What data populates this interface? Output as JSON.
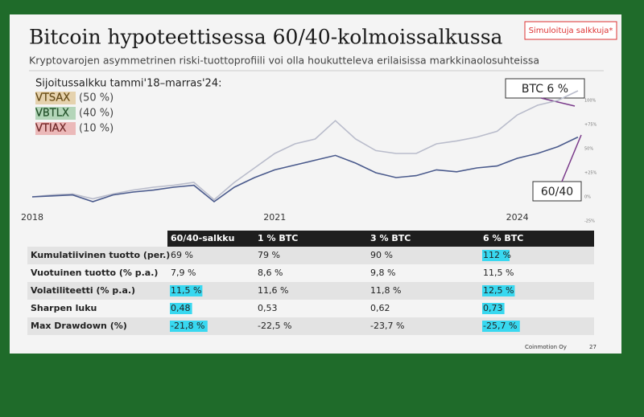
{
  "badge": "Simuloituja salkkuja*",
  "chart_data": {
    "type": "line",
    "title": "Bitcoin hypoteettisessa 60/40-kolmoissalkussa",
    "subtitle": "Kryptovarojen asymmetrinen riski-tuottoprofiili voi olla houkutteleva erilaisissa markkinaolosuhteissa",
    "legend_title": "Sijoitussalkku tammi'18–marras'24:",
    "legend_items": [
      {
        "label": "VTSAX",
        "pct": "(50 %)",
        "color": "#c8932a"
      },
      {
        "label": "VBTLX",
        "pct": "(40 %)",
        "color": "#3d9a4a"
      },
      {
        "label": "VTIAX",
        "pct": "(10 %)",
        "color": "#d94a4a"
      }
    ],
    "x": [
      2018,
      2018.25,
      2018.5,
      2018.75,
      2019,
      2019.25,
      2019.5,
      2019.75,
      2020,
      2020.25,
      2020.5,
      2020.75,
      2021,
      2021.25,
      2021.5,
      2021.75,
      2022,
      2022.25,
      2022.5,
      2022.75,
      2023,
      2023.25,
      2023.5,
      2023.75,
      2024,
      2024.25,
      2024.5,
      2024.75
    ],
    "xlim": [
      2018,
      2024.9
    ],
    "xticks": [
      2018,
      2021,
      2024
    ],
    "ylim": [
      -25,
      110
    ],
    "yticks": [
      {
        "value": -25,
        "label": "-25%"
      },
      {
        "value": 0,
        "label": "0%"
      },
      {
        "value": 25,
        "label": "+25%"
      },
      {
        "value": 50,
        "label": "50%"
      },
      {
        "value": 75,
        "label": "+75%"
      },
      {
        "value": 100,
        "label": "100%"
      }
    ],
    "series": [
      {
        "name": "BTC 6 %",
        "color": "#b9bccb",
        "values": [
          0,
          2,
          3,
          -2,
          3,
          7,
          10,
          12,
          15,
          -3,
          15,
          30,
          45,
          55,
          60,
          79,
          60,
          48,
          45,
          45,
          55,
          58,
          62,
          68,
          85,
          95,
          100,
          110
        ]
      },
      {
        "name": "60/40",
        "color": "#4a5a8c",
        "values": [
          0,
          1,
          2,
          -5,
          2,
          5,
          7,
          10,
          12,
          -5,
          10,
          20,
          28,
          33,
          38,
          43,
          35,
          25,
          20,
          22,
          28,
          26,
          30,
          32,
          40,
          45,
          52,
          62
        ]
      }
    ]
  },
  "table": {
    "header": [
      "60/40-salkku",
      "1 % BTC",
      "3 % BTC",
      "6 % BTC"
    ],
    "rows": [
      [
        "Kumulatiivinen tuotto (per.)",
        "69 %",
        "79 %",
        "90 %",
        "112 %"
      ],
      [
        "Vuotuinen tuotto (% p.a.)",
        "7,9 %",
        "8,6 %",
        "9,8 %",
        "11,5 %"
      ],
      [
        "Volatiliteetti (% p.a.)",
        "11,5 %",
        "11,6 %",
        "11,8 %",
        "12,5 %"
      ],
      [
        "Sharpen luku",
        "0,48",
        "0,53",
        "0,62",
        "0,73"
      ],
      [
        "Max Drawdown (%)",
        "-21,8 %",
        "-22,5 %",
        "-23,7 %",
        "-25,7 %"
      ]
    ]
  },
  "footer": {
    "company": "Coinmotion Oy",
    "page": "27"
  }
}
